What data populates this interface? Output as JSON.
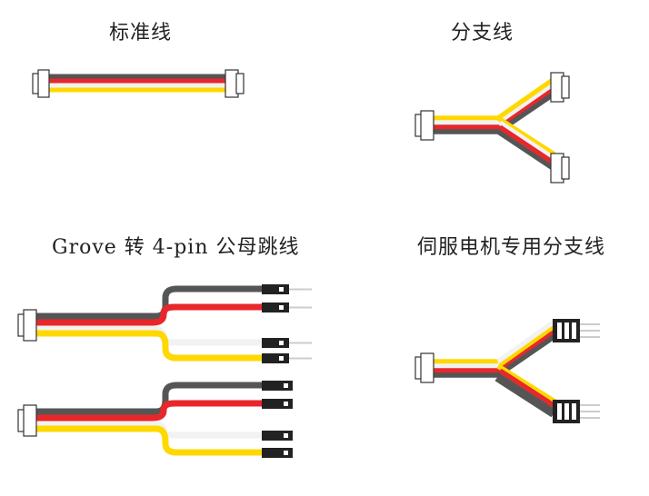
{
  "labels": {
    "standard": "标准线",
    "split": "分支线",
    "grove_jumper": "Grove 转 4-pin 公母跳线",
    "servo_split": "伺服电机专用分支线"
  },
  "colors": {
    "wire_black": "#555555",
    "wire_red": "#e8272b",
    "wire_white": "#f2f2f2",
    "wire_yellow": "#ffd800",
    "connector_fill": "#ffffff",
    "connector_stroke": "#333333",
    "pin_housing": "#222222",
    "pin_metal": "#cccccc"
  }
}
